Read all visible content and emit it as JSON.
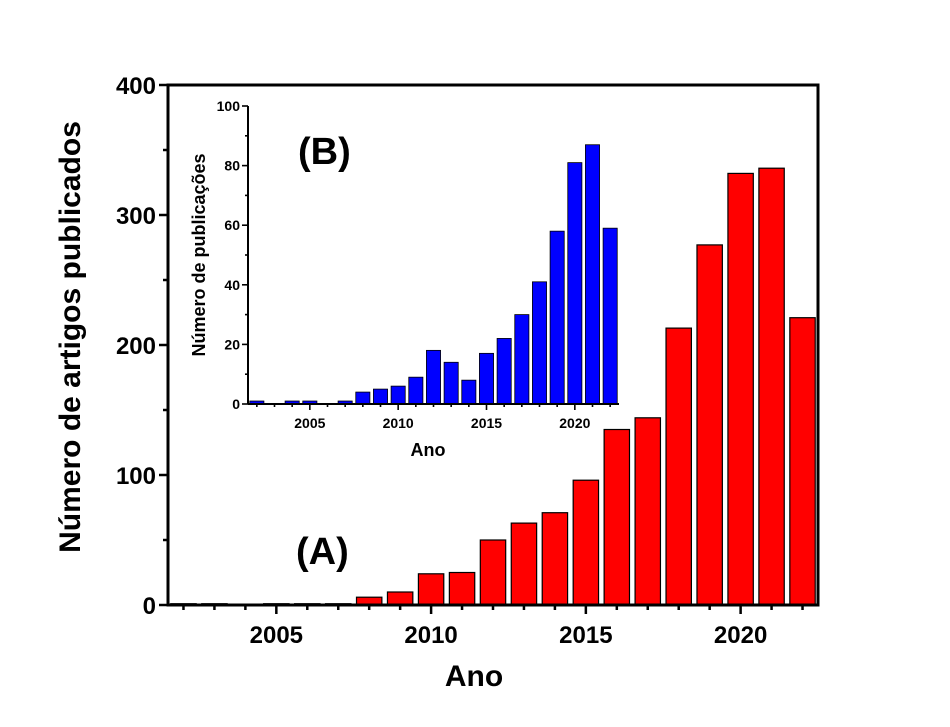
{
  "chart_data": [
    {
      "type": "bar",
      "panel_label": "(A)",
      "xlabel": "Ano",
      "ylabel": "Número de artigos publicados",
      "bar_color": "#ff0000",
      "x": [
        2002,
        2003,
        2004,
        2005,
        2006,
        2007,
        2008,
        2009,
        2010,
        2011,
        2012,
        2013,
        2014,
        2015,
        2016,
        2017,
        2018,
        2019,
        2020,
        2021,
        2022
      ],
      "values": [
        1,
        1,
        0,
        1,
        1,
        1,
        6,
        10,
        24,
        25,
        50,
        63,
        71,
        96,
        135,
        144,
        213,
        277,
        332,
        336,
        221
      ],
      "xlim": [
        2001.5,
        2022.5
      ],
      "ylim": [
        0,
        400
      ],
      "xticks": [
        "2005",
        "2010",
        "2015",
        "2020"
      ],
      "yticks": [
        "0",
        "100",
        "200",
        "300",
        "400"
      ]
    },
    {
      "type": "bar",
      "panel_label": "(B)",
      "xlabel": "Ano",
      "ylabel": "Número de publicações",
      "bar_color": "#0000ff",
      "x": [
        2002,
        2003,
        2004,
        2005,
        2006,
        2007,
        2008,
        2009,
        2010,
        2011,
        2012,
        2013,
        2014,
        2015,
        2016,
        2017,
        2018,
        2019,
        2020,
        2021,
        2022
      ],
      "values": [
        1,
        0,
        1,
        1,
        0,
        1,
        4,
        5,
        6,
        9,
        18,
        14,
        8,
        17,
        22,
        30,
        41,
        58,
        81,
        87,
        59
      ],
      "xlim": [
        2001.5,
        2022.5
      ],
      "ylim": [
        0,
        100
      ],
      "xticks": [
        "2005",
        "2010",
        "2015",
        "2020"
      ],
      "yticks": [
        "0",
        "20",
        "40",
        "60",
        "80",
        "100"
      ]
    }
  ]
}
